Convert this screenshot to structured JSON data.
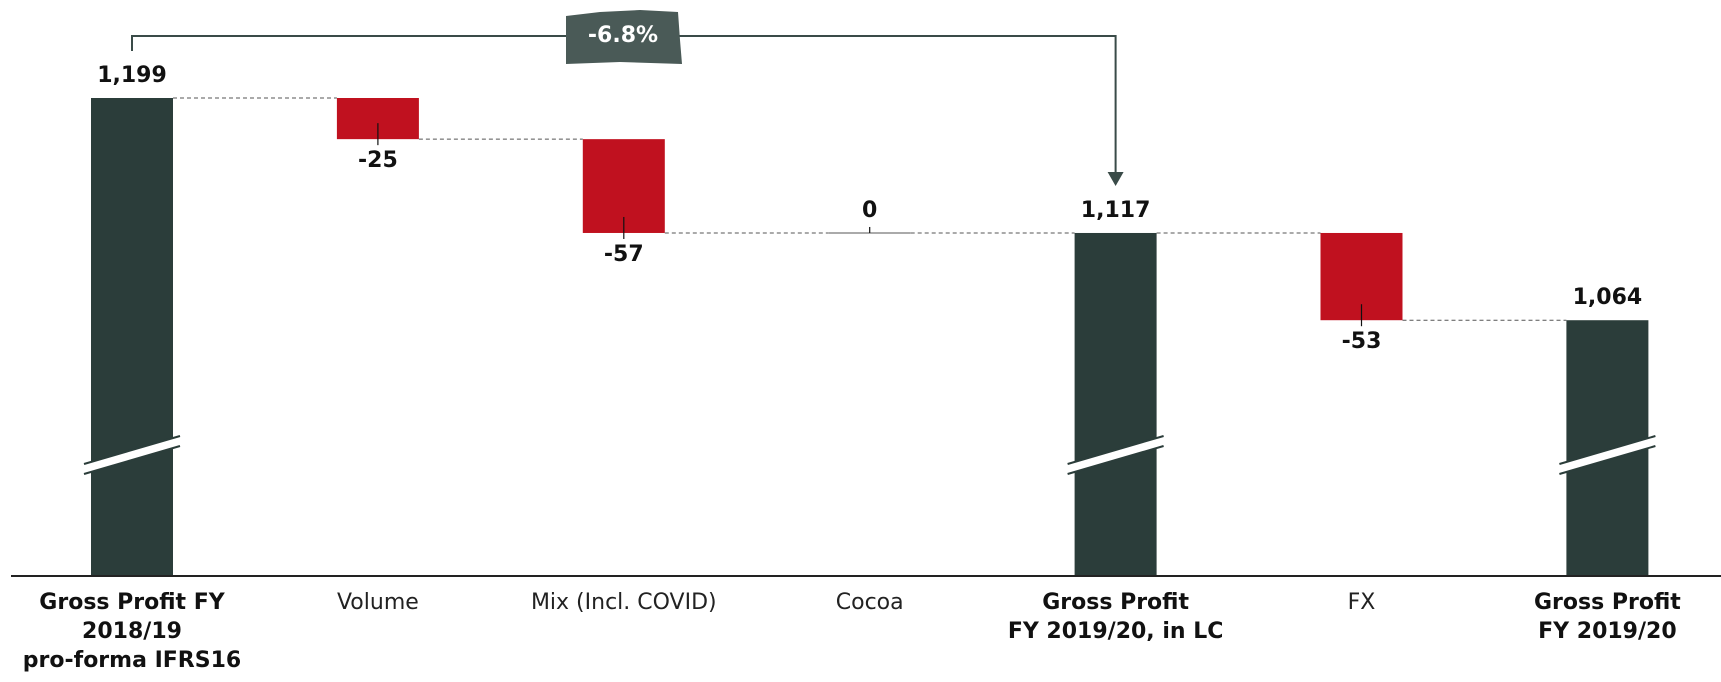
{
  "chart_data": {
    "type": "waterfall",
    "categories": [
      "Gross Profit FY\n2018/19\npro-forma IFRS16",
      "Volume",
      "Mix (Incl. COVID)",
      "Cocoa",
      "Gross Profit\nFY 2019/20, in LC",
      "FX",
      "Gross Profit\nFY 2019/20"
    ],
    "values": [
      1199,
      -25,
      -57,
      0,
      1117,
      -53,
      1064
    ],
    "value_labels": [
      "1,199",
      "-25",
      "-57",
      "0",
      "1,117",
      "-53",
      "1,064"
    ],
    "totals": [
      true,
      false,
      false,
      false,
      true,
      false,
      true
    ],
    "color_total": "#2b3d3a",
    "color_decrease": "#c0111f",
    "annotation": "-6.8%"
  }
}
